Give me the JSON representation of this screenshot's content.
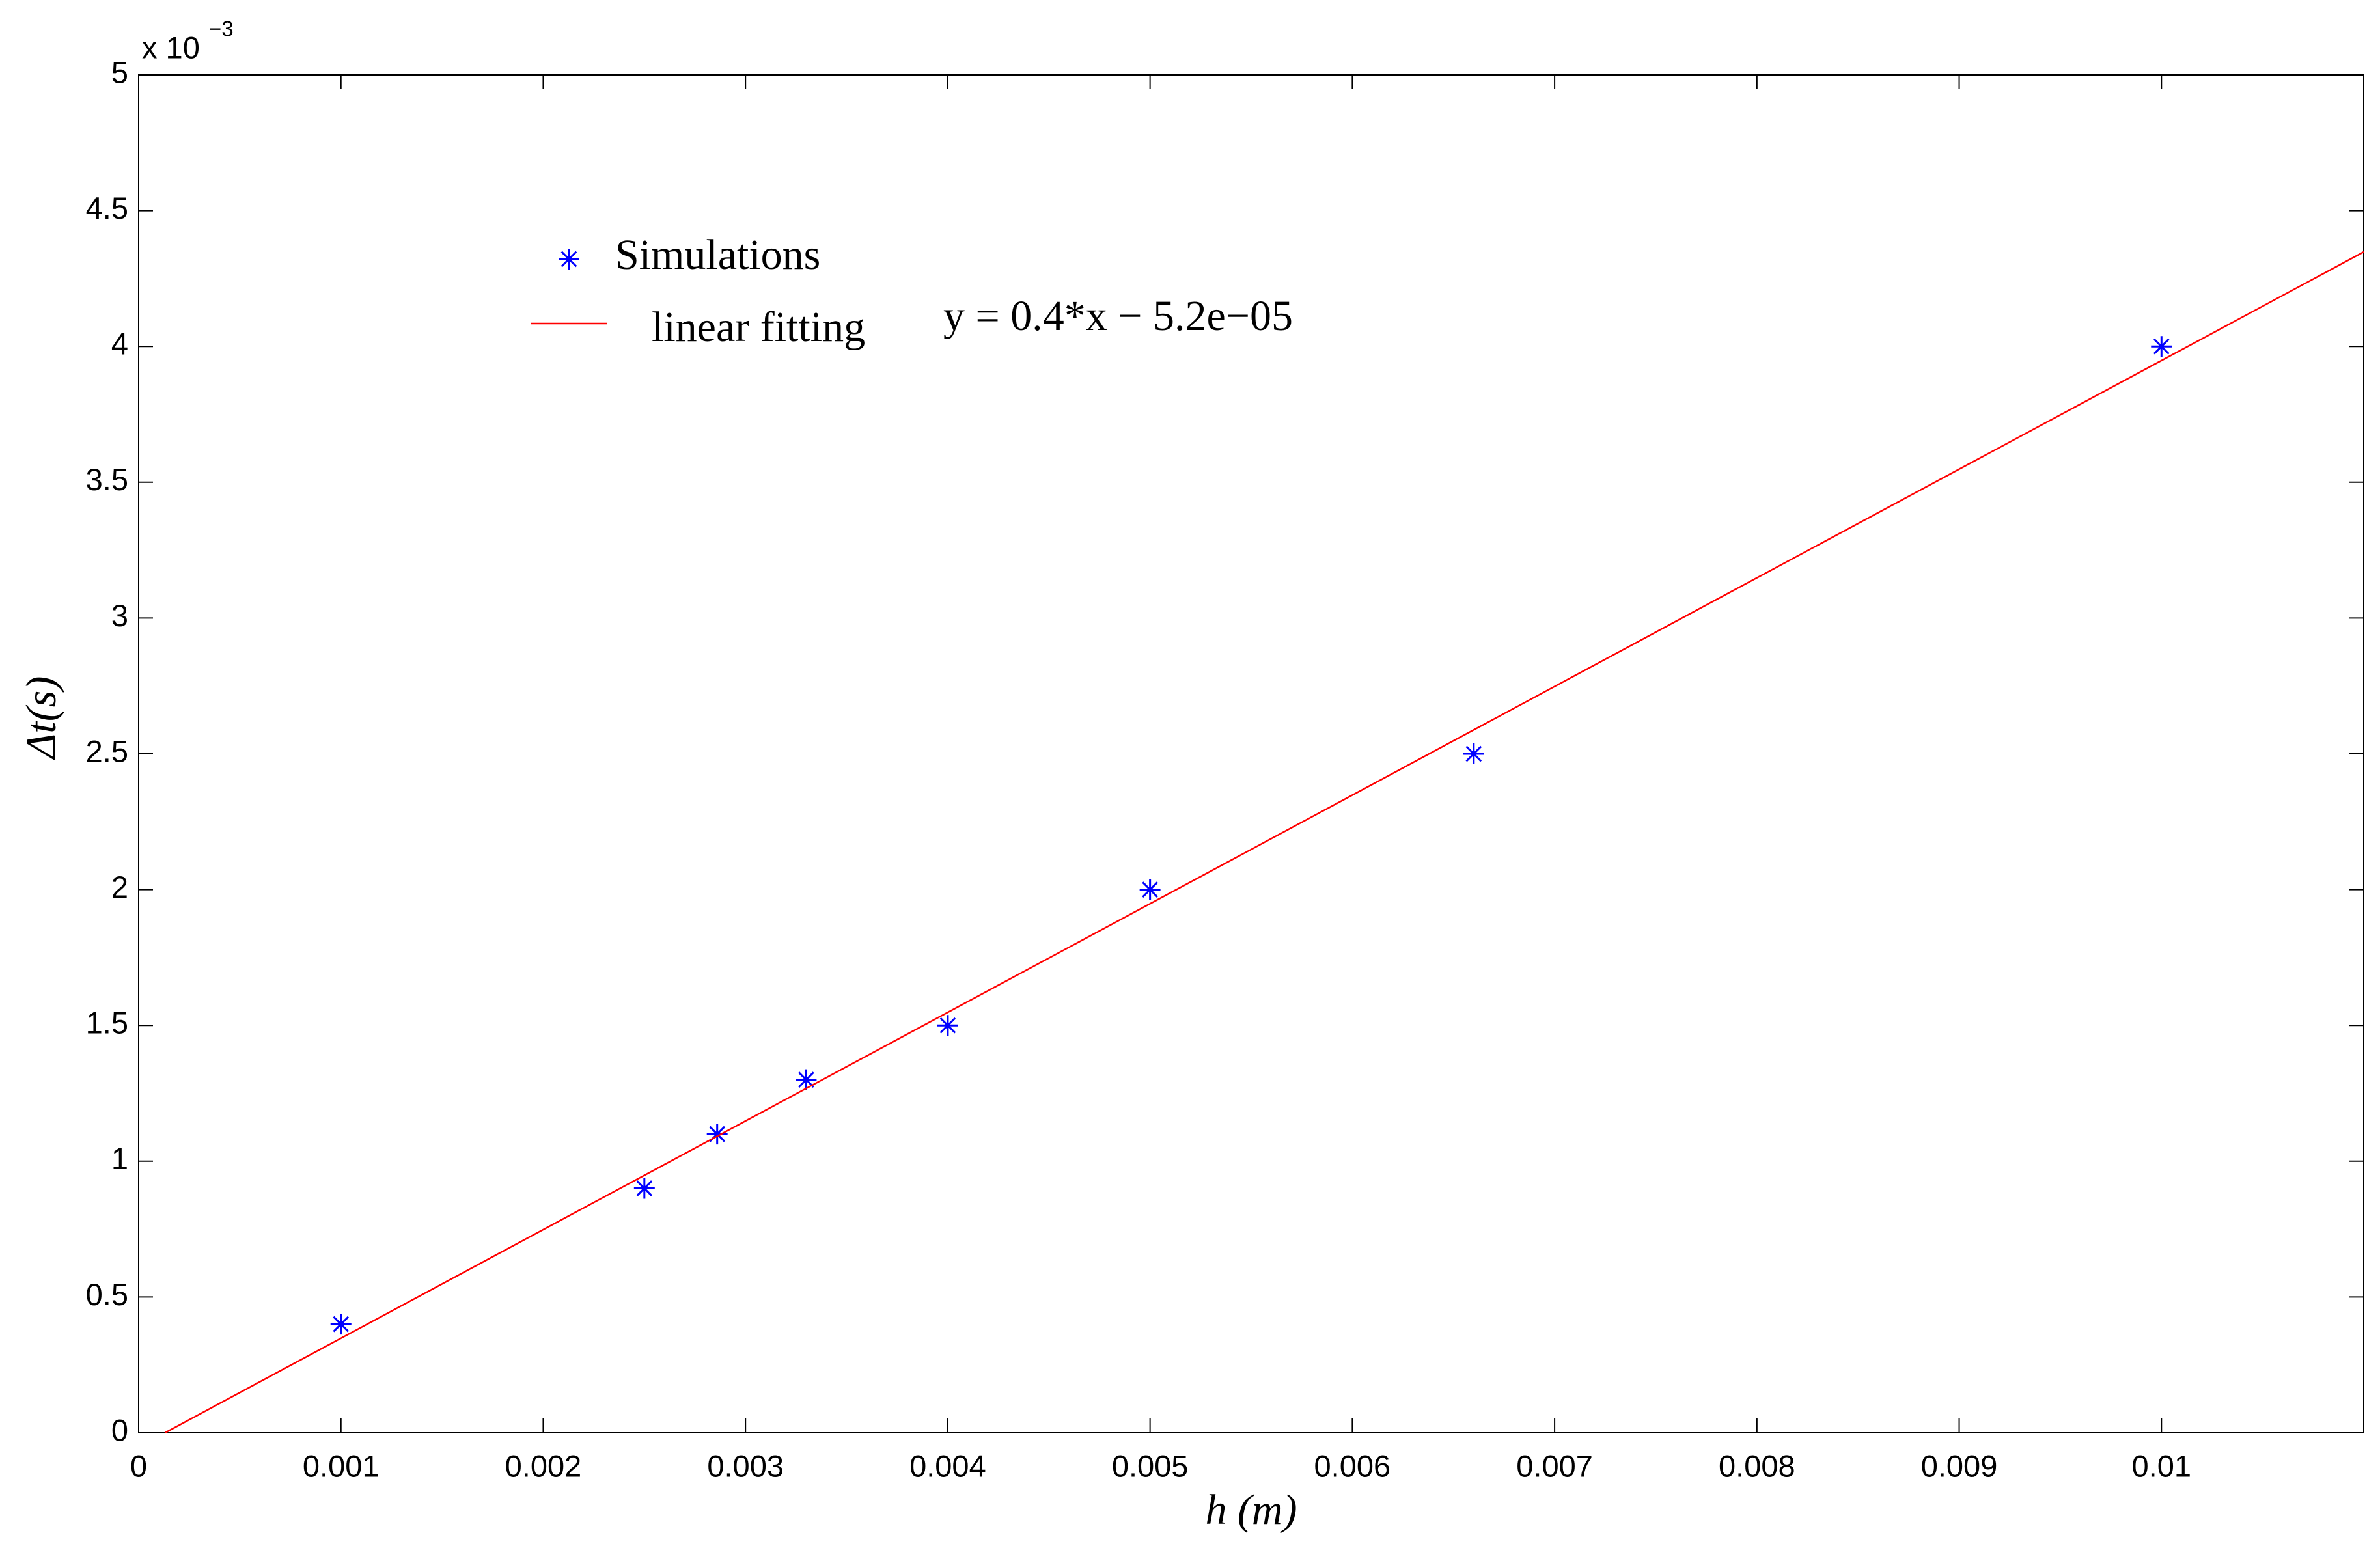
{
  "chart_data": {
    "type": "scatter",
    "x_label": "h (m)",
    "y_label": "Δt(s)",
    "y_multiplier": {
      "base": "x 10",
      "exponent": "−3"
    },
    "annotation": "y = 0.4*x − 5.2e−05",
    "xlim": [
      0,
      0.011
    ],
    "ylim": [
      0,
      5
    ],
    "xticks": [
      0,
      0.001,
      0.002,
      0.003,
      0.004,
      0.005,
      0.006,
      0.007,
      0.008,
      0.009,
      0.01
    ],
    "yticks": [
      0,
      0.5,
      1,
      1.5,
      2,
      2.5,
      3,
      3.5,
      4,
      4.5,
      5
    ],
    "series": [
      {
        "name": "Simulations",
        "type": "scatter",
        "color": "#0000ff",
        "x": [
          0.001,
          0.0025,
          0.00286,
          0.0033,
          0.004,
          0.005,
          0.0066,
          0.01
        ],
        "values": [
          0.4,
          0.9,
          1.1,
          1.3,
          1.5,
          2,
          2.5,
          4
        ]
      },
      {
        "name": "linear fitting",
        "type": "line",
        "color": "#ff0000",
        "x": [
          0.00013,
          0.011
        ],
        "values": [
          0,
          4.348
        ]
      }
    ]
  }
}
